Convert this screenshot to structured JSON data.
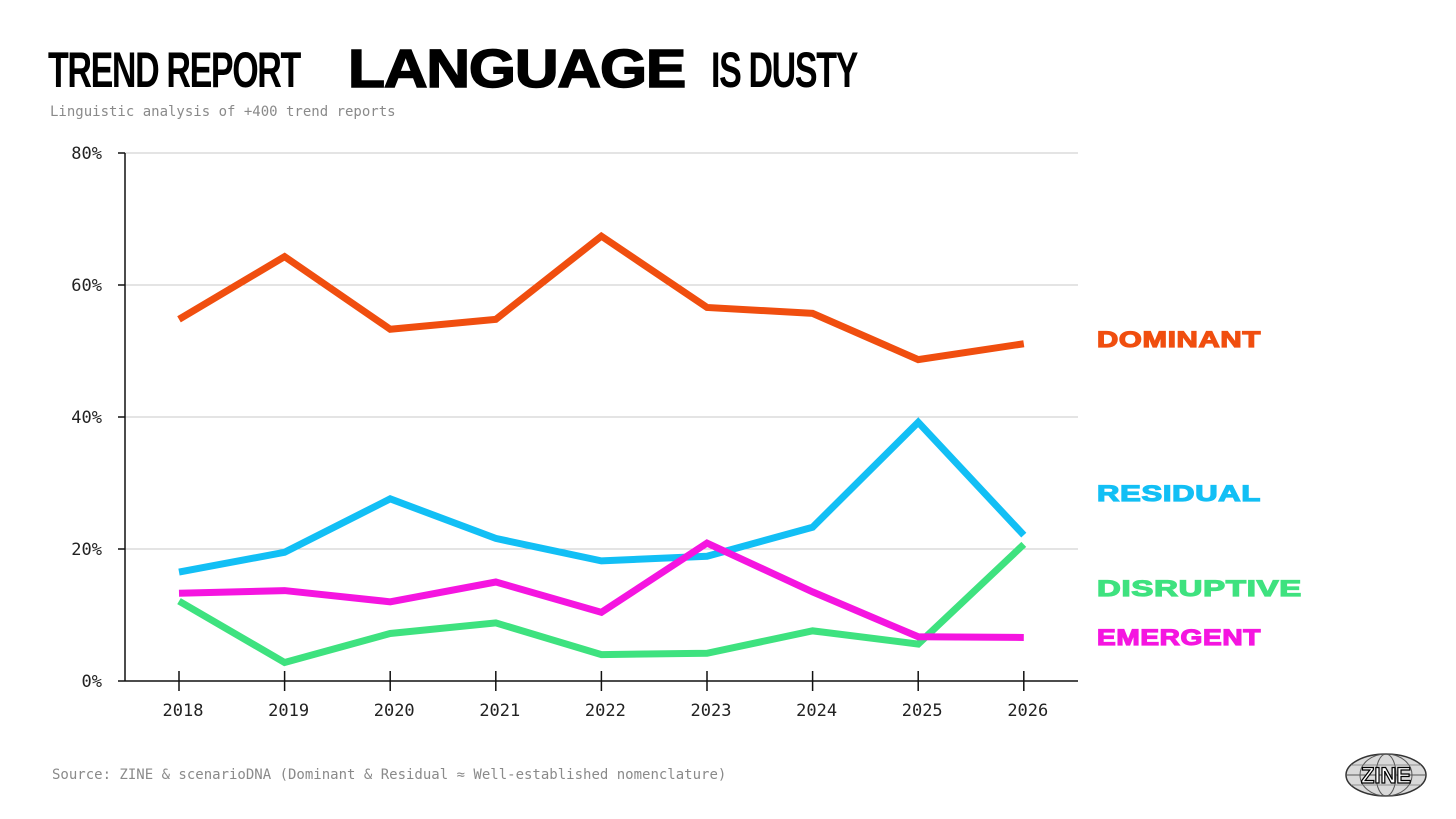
{
  "header": {
    "title_part1": "TREND REPORT",
    "title_part2": "LANGUAGE",
    "title_part3": "IS DUSTY",
    "subtitle": "Linguistic analysis of +400 trend reports"
  },
  "footer": {
    "source": "Source: ZINE & scenarioDNA (Dominant & Residual ≈ Well-established nomenclature)",
    "logo_text": "ZINE"
  },
  "chart_data": {
    "type": "line",
    "title": "TREND REPORT LANGUAGE IS DUSTY",
    "subtitle": "Linguistic analysis of +400 trend reports",
    "xlabel": "",
    "ylabel": "",
    "x": [
      "2018",
      "2019",
      "2020",
      "2021",
      "2022",
      "2023",
      "2024",
      "2025",
      "2026"
    ],
    "ylim": [
      0,
      80
    ],
    "yticks": [
      0,
      20,
      40,
      60,
      80
    ],
    "ytick_labels": [
      "0%",
      "20%",
      "40%",
      "60%",
      "80%"
    ],
    "grid": true,
    "legend": "right-side inline labels",
    "series": [
      {
        "name": "DOMINANT",
        "color": "#f04e0f",
        "values": [
          54.8,
          64.3,
          53.3,
          54.8,
          67.4,
          56.6,
          55.7,
          48.7,
          51.1
        ]
      },
      {
        "name": "RESIDUAL",
        "color": "#12bff5",
        "values": [
          16.5,
          19.5,
          27.6,
          21.6,
          18.2,
          18.9,
          23.3,
          39.2,
          22.1
        ]
      },
      {
        "name": "DISRUPTIVE",
        "color": "#3ee27f",
        "values": [
          12.1,
          2.8,
          7.2,
          8.8,
          4.0,
          4.2,
          7.6,
          5.6,
          20.7
        ]
      },
      {
        "name": "EMERGENT",
        "color": "#f515e0",
        "values": [
          13.3,
          13.7,
          12.0,
          15.0,
          10.4,
          20.9,
          13.5,
          6.7,
          6.6
        ]
      }
    ]
  }
}
